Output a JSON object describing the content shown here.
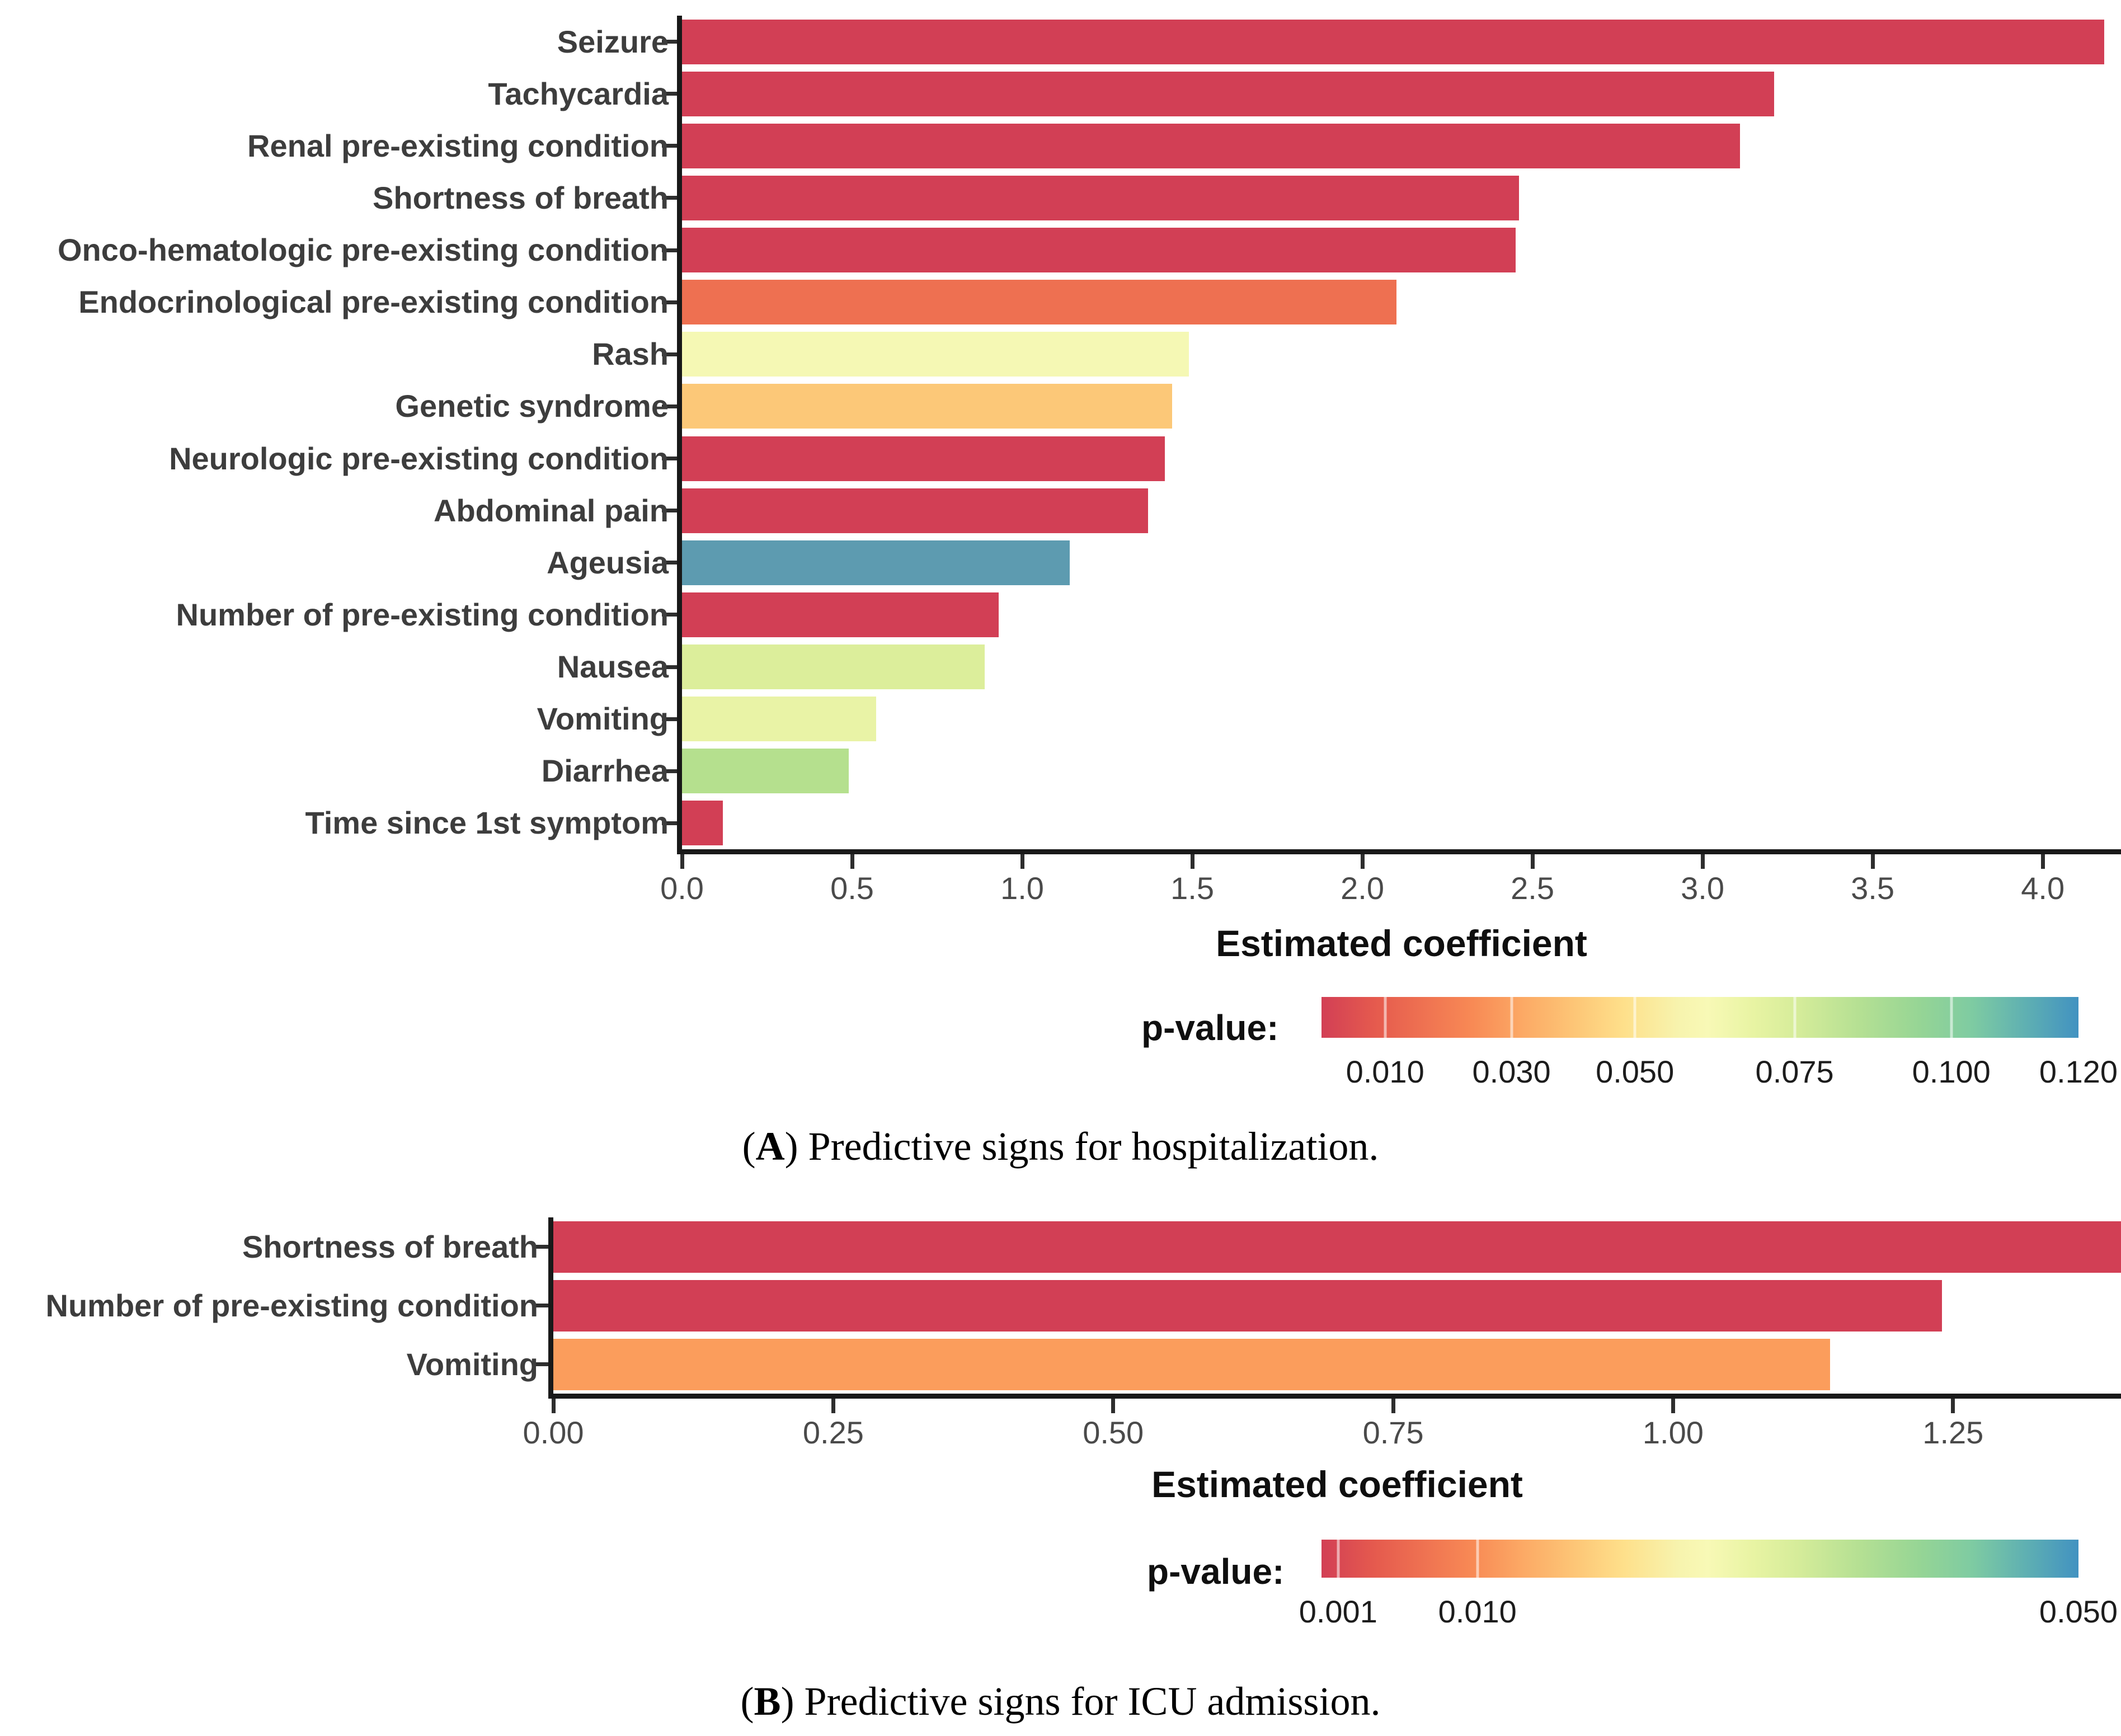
{
  "chart_data": [
    {
      "id": "A",
      "type": "bar",
      "orientation": "horizontal",
      "title": "",
      "xlabel": "Estimated coefficient",
      "ylabel": "",
      "xlim": [
        0,
        4.23
      ],
      "grid": false,
      "x_ticks": [
        {
          "label": "0.0",
          "value": 0.0
        },
        {
          "label": "0.5",
          "value": 0.5
        },
        {
          "label": "1.0",
          "value": 1.0
        },
        {
          "label": "1.5",
          "value": 1.5
        },
        {
          "label": "2.0",
          "value": 2.0
        },
        {
          "label": "2.5",
          "value": 2.5
        },
        {
          "label": "3.0",
          "value": 3.0
        },
        {
          "label": "3.5",
          "value": 3.5
        },
        {
          "label": "4.0",
          "value": 4.0
        }
      ],
      "bars": [
        {
          "label": "Seizure",
          "value": 4.18,
          "color": "#d23f55"
        },
        {
          "label": "Tachycardia",
          "value": 3.21,
          "color": "#d23f55"
        },
        {
          "label": "Renal pre-existing condition",
          "value": 3.11,
          "color": "#d23f55"
        },
        {
          "label": "Shortness of breath",
          "value": 2.46,
          "color": "#d23f55"
        },
        {
          "label": "Onco-hematologic pre-existing condition",
          "value": 2.45,
          "color": "#d23f55"
        },
        {
          "label": "Endocrinological pre-existing condition",
          "value": 2.1,
          "color": "#ee7051"
        },
        {
          "label": "Rash",
          "value": 1.49,
          "color": "#f5f8b4"
        },
        {
          "label": "Genetic syndrome",
          "value": 1.44,
          "color": "#fcc878"
        },
        {
          "label": "Neurologic pre-existing condition",
          "value": 1.42,
          "color": "#d23f55"
        },
        {
          "label": "Abdominal pain",
          "value": 1.37,
          "color": "#d23f55"
        },
        {
          "label": "Ageusia",
          "value": 1.14,
          "color": "#5d9bb0"
        },
        {
          "label": "Number of pre-existing condition",
          "value": 0.93,
          "color": "#d23f55"
        },
        {
          "label": "Nausea",
          "value": 0.89,
          "color": "#dcee9b"
        },
        {
          "label": "Vomiting",
          "value": 0.57,
          "color": "#e9f3a6"
        },
        {
          "label": "Diarrhea",
          "value": 0.49,
          "color": "#b5e08e"
        },
        {
          "label": "Time since 1st symptom",
          "value": 0.12,
          "color": "#d23f55"
        }
      ],
      "legend": {
        "label": "p-value:",
        "ticks": [
          {
            "label": "0.010",
            "pos": 8.4
          },
          {
            "label": "0.030",
            "pos": 25.1
          },
          {
            "label": "0.050",
            "pos": 41.4
          },
          {
            "label": "0.075",
            "pos": 62.5
          },
          {
            "label": "0.100",
            "pos": 83.2
          },
          {
            "label": "0.120",
            "pos": 100
          }
        ]
      },
      "caption": {
        "open": "(",
        "letter": "A",
        "rest": ") Predictive signs for hospitalization."
      }
    },
    {
      "id": "B",
      "type": "bar",
      "orientation": "horizontal",
      "title": "",
      "xlabel": "Estimated coefficient",
      "ylabel": "",
      "xlim": [
        0,
        1.4
      ],
      "grid": false,
      "x_ticks": [
        {
          "label": "0.00",
          "value": 0.0
        },
        {
          "label": "0.25",
          "value": 0.25
        },
        {
          "label": "0.50",
          "value": 0.5
        },
        {
          "label": "0.75",
          "value": 0.75
        },
        {
          "label": "1.00",
          "value": 1.0
        },
        {
          "label": "1.25",
          "value": 1.25
        }
      ],
      "bars": [
        {
          "label": "Shortness of breath",
          "value": 1.4,
          "color": "#d23f55"
        },
        {
          "label": "Number of pre-existing condition",
          "value": 1.24,
          "color": "#d23f55"
        },
        {
          "label": "Vomiting",
          "value": 1.14,
          "color": "#fb9d5c"
        }
      ],
      "legend": {
        "label": "p-value:",
        "ticks": [
          {
            "label": "0.001",
            "pos": 2.2
          },
          {
            "label": "0.010",
            "pos": 20.6
          },
          {
            "label": "0.050",
            "pos": 100
          }
        ]
      },
      "caption": {
        "open": "(",
        "letter": "B",
        "rest": ") Predictive signs for ICU admission."
      }
    }
  ]
}
